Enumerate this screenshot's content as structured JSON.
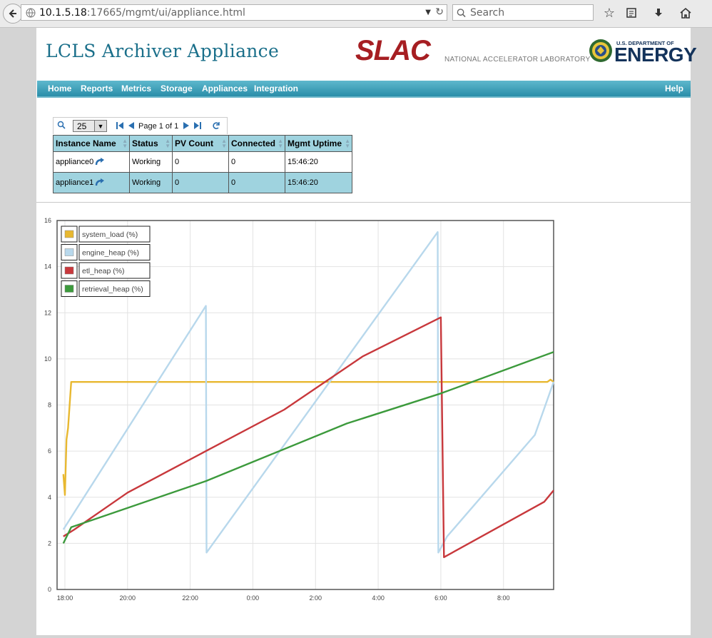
{
  "browser": {
    "url_host": "10.1.5.18",
    "url_rest": ":17665/mgmt/ui/appliance.html",
    "search_placeholder": "Search"
  },
  "header": {
    "title": "LCLS Archiver Appliance",
    "slac_logo_text": "SLAC",
    "slac_subtitle": "NATIONAL ACCELERATOR LABORATORY",
    "doe_line1": "U.S. DEPARTMENT OF",
    "doe_line2": "ENERGY"
  },
  "nav": {
    "items": [
      "Home",
      "Reports",
      "Metrics",
      "Storage",
      "Appliances",
      "Integration"
    ],
    "help": "Help"
  },
  "grid": {
    "page_size": "25",
    "page_label": "Page 1 of 1",
    "columns": [
      "Instance Name",
      "Status",
      "PV Count",
      "Connected",
      "Mgmt Uptime"
    ],
    "rows": [
      [
        "appliance0",
        "Working",
        "0",
        "0",
        "15:46:20"
      ],
      [
        "appliance1",
        "Working",
        "0",
        "0",
        "15:46:20"
      ]
    ]
  },
  "colors": {
    "system_load": "#e8b830",
    "engine_heap": "#b8d8ec",
    "etl_heap": "#c8383c",
    "retrieval_heap": "#3c9a3c"
  },
  "chart_data": {
    "type": "line",
    "legend": [
      "system_load (%)",
      "engine_heap (%)",
      "etl_heap (%)",
      "retrieval_heap (%)"
    ],
    "legend_position": "top-left",
    "grid": true,
    "x_ticks": [
      "18:00",
      "20:00",
      "22:00",
      "0:00",
      "2:00",
      "4:00",
      "6:00",
      "8:00"
    ],
    "y_ticks": [
      "0",
      "2",
      "4",
      "6",
      "8",
      "10",
      "12",
      "14",
      "16"
    ],
    "ylim": [
      0,
      16
    ],
    "xlim_hours": [
      -0.25,
      15.6
    ],
    "series": [
      {
        "name": "system_load (%)",
        "x": [
          -0.05,
          0,
          0.05,
          0.1,
          0.2,
          0.3,
          15.4,
          15.5,
          15.6
        ],
        "y": [
          5,
          4.1,
          6.5,
          7.0,
          9.0,
          9.0,
          9.0,
          9.1,
          9.0
        ]
      },
      {
        "name": "engine_heap (%)",
        "x": [
          -0.05,
          4.5,
          4.52,
          11.9,
          11.92,
          12.2,
          15.0,
          15.6
        ],
        "y": [
          2.6,
          12.3,
          1.6,
          15.5,
          1.6,
          2.3,
          6.7,
          9.0
        ]
      },
      {
        "name": "etl_heap (%)",
        "x": [
          -0.05,
          0.3,
          2.0,
          4.5,
          7.0,
          9.5,
          12.0,
          12.1,
          15.3,
          15.6
        ],
        "y": [
          2.3,
          2.6,
          4.2,
          6.0,
          7.8,
          10.1,
          11.8,
          1.4,
          3.8,
          4.3
        ]
      },
      {
        "name": "retrieval_heap (%)",
        "x": [
          -0.05,
          0.2,
          4.5,
          9.0,
          12.0,
          15.6
        ],
        "y": [
          2.0,
          2.7,
          4.7,
          7.2,
          8.5,
          10.3
        ]
      }
    ]
  }
}
